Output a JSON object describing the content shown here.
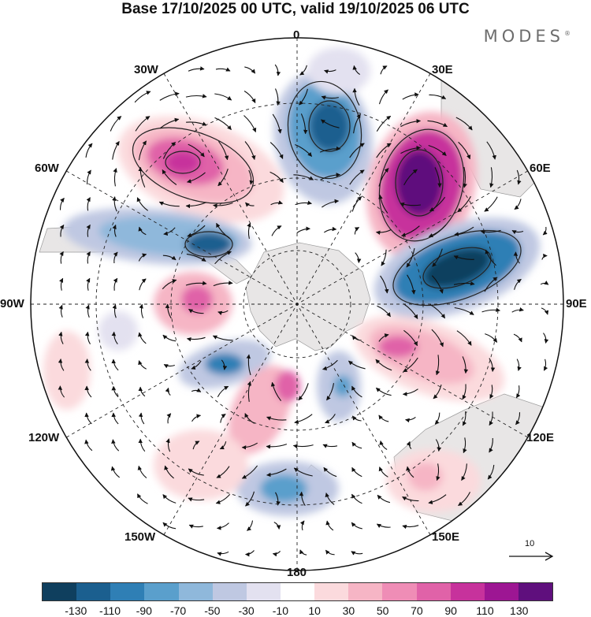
{
  "title": "Base 17/10/2025 00 UTC, valid 19/10/2025 06 UTC",
  "brand": "MODES",
  "brand_mark": "®",
  "longitude_labels": {
    "n0": "0",
    "e30": "30E",
    "e60": "60E",
    "e90": "90E",
    "e120": "120E",
    "e150": "150E",
    "s180": "180",
    "w150": "150W",
    "w120": "120W",
    "w90": "90W",
    "w60": "60W",
    "w30": "30W"
  },
  "colorbar": {
    "colors": [
      "#0f3f5e",
      "#1b5f8f",
      "#2f7fb5",
      "#5a9fcc",
      "#8fb8db",
      "#bfc8e2",
      "#e3e1f0",
      "#ffffff",
      "#fbdadd",
      "#f6b5c5",
      "#ef8db6",
      "#e062a8",
      "#c7329c",
      "#9d1693",
      "#5f0f7d"
    ],
    "ticks": [
      "-130",
      "-110",
      "-90",
      "-70",
      "-50",
      "-30",
      "-10",
      "10",
      "30",
      "50",
      "70",
      "90",
      "110",
      "130"
    ]
  },
  "reference_vector": "10",
  "anomalies": [
    {
      "name": "anomaly-high-atlantic-45w",
      "sign": "positive",
      "value": 100
    },
    {
      "name": "anomaly-low-atlantic-5e",
      "sign": "negative",
      "value": -100
    },
    {
      "name": "anomaly-high-south-africa-40e",
      "sign": "positive",
      "value": 130
    },
    {
      "name": "anomaly-low-indian-ocean-75e",
      "sign": "negative",
      "value": -120
    },
    {
      "name": "anomaly-high-indian-ocean-105e",
      "sign": "positive",
      "value": 60
    },
    {
      "name": "anomaly-low-drake-passage-65w",
      "sign": "negative",
      "value": -80
    },
    {
      "name": "anomaly-high-bellingshausen-95w",
      "sign": "positive",
      "value": 55
    },
    {
      "name": "anomaly-low-amundsen-130w",
      "sign": "negative",
      "value": -60
    },
    {
      "name": "anomaly-high-ross-sea-160w",
      "sign": "positive",
      "value": 50
    },
    {
      "name": "anomaly-low-ross-sea-160e",
      "sign": "negative",
      "value": -45
    },
    {
      "name": "anomaly-low-pacific-175e",
      "sign": "negative",
      "value": -55
    },
    {
      "name": "anomaly-high-pacific-145w",
      "sign": "positive",
      "value": 35
    },
    {
      "name": "anomaly-high-australia-135e",
      "sign": "positive",
      "value": 40
    }
  ]
}
